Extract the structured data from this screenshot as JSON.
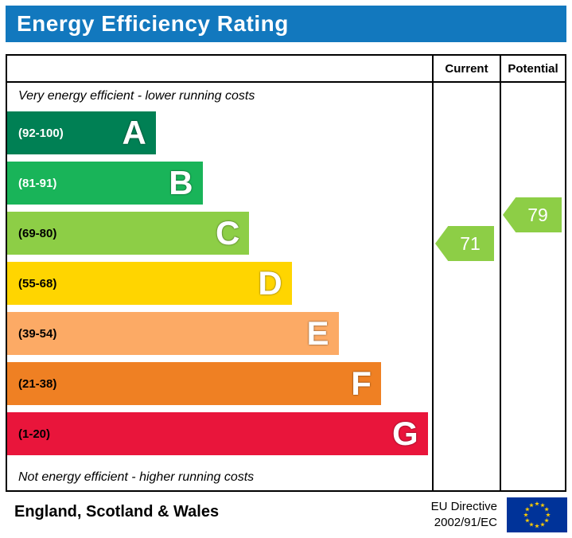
{
  "title": "Energy Efficiency Rating",
  "columns": {
    "current": "Current",
    "potential": "Potential"
  },
  "notes": {
    "top": "Very energy efficient - lower running costs",
    "bottom": "Not energy efficient - higher running costs"
  },
  "colors": {
    "header": "#1278be",
    "flag_blue": "#003399",
    "flag_star": "#ffcc00"
  },
  "chart_data": {
    "type": "bar",
    "title": "Energy Efficiency Rating",
    "bands": [
      {
        "letter": "A",
        "range": "(92-100)",
        "color": "#008054",
        "text_color": "#ffffff",
        "width_pct": 35
      },
      {
        "letter": "B",
        "range": "(81-91)",
        "color": "#19b459",
        "text_color": "#ffffff",
        "width_pct": 46
      },
      {
        "letter": "C",
        "range": "(69-80)",
        "color": "#8dce46",
        "text_color": "#000000",
        "width_pct": 57
      },
      {
        "letter": "D",
        "range": "(55-68)",
        "color": "#ffd500",
        "text_color": "#000000",
        "width_pct": 67
      },
      {
        "letter": "E",
        "range": "(39-54)",
        "color": "#fcaa65",
        "text_color": "#000000",
        "width_pct": 78
      },
      {
        "letter": "F",
        "range": "(21-38)",
        "color": "#ef8023",
        "text_color": "#000000",
        "width_pct": 88
      },
      {
        "letter": "G",
        "range": "(1-20)",
        "color": "#e9153b",
        "text_color": "#000000",
        "width_pct": 99
      }
    ],
    "current": {
      "value": 71,
      "band": "C",
      "color": "#8dce46"
    },
    "potential": {
      "value": 79,
      "band": "C",
      "color": "#8dce46"
    }
  },
  "footer": {
    "region": "England, Scotland & Wales",
    "directive_line1": "EU Directive",
    "directive_line2": "2002/91/EC"
  }
}
